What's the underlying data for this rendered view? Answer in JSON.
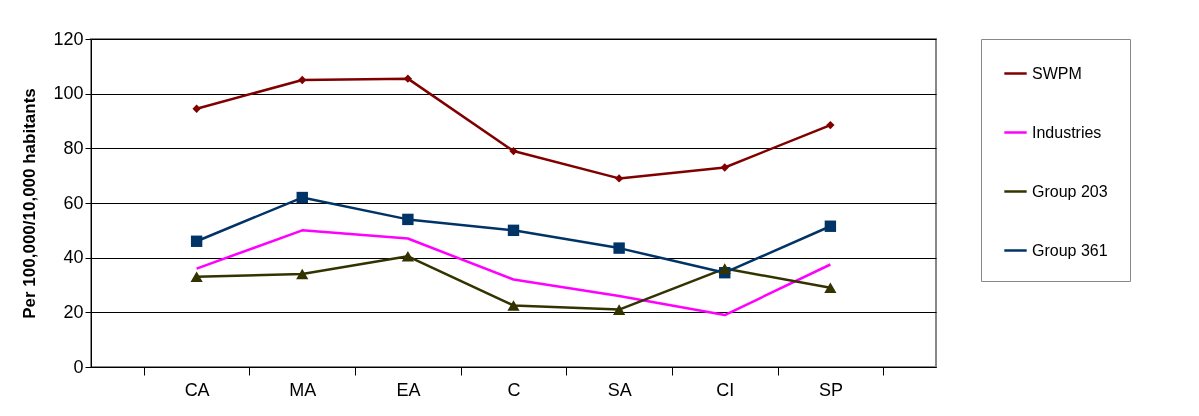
{
  "chart_data": {
    "type": "line",
    "ylabel": "Per 100,000/10,000 habitants",
    "categories": [
      "CA",
      "MA",
      "EA",
      "C",
      "SA",
      "CI",
      "SP"
    ],
    "ylim": [
      0,
      120
    ],
    "yticks": [
      0,
      20,
      40,
      60,
      80,
      100,
      120
    ],
    "grid": "y",
    "legend": "right",
    "line_style": "solid",
    "series": [
      {
        "name": "SWPM",
        "color": "#800000",
        "marker": "diamond",
        "values": [
          94.5,
          105,
          105.5,
          79,
          69,
          73,
          88.5
        ]
      },
      {
        "name": "Industries",
        "color": "#ff00ff",
        "marker": "none",
        "values": [
          36,
          50,
          47,
          32,
          26,
          19,
          37.5
        ]
      },
      {
        "name": "Group 203",
        "color": "#333300",
        "marker": "triangle",
        "values": [
          33,
          34,
          40.5,
          22.5,
          21,
          36,
          29
        ]
      },
      {
        "name": "Group 361",
        "color": "#003366",
        "marker": "square",
        "values": [
          46,
          62,
          54,
          50,
          43.5,
          34.5,
          51.5
        ]
      }
    ]
  }
}
